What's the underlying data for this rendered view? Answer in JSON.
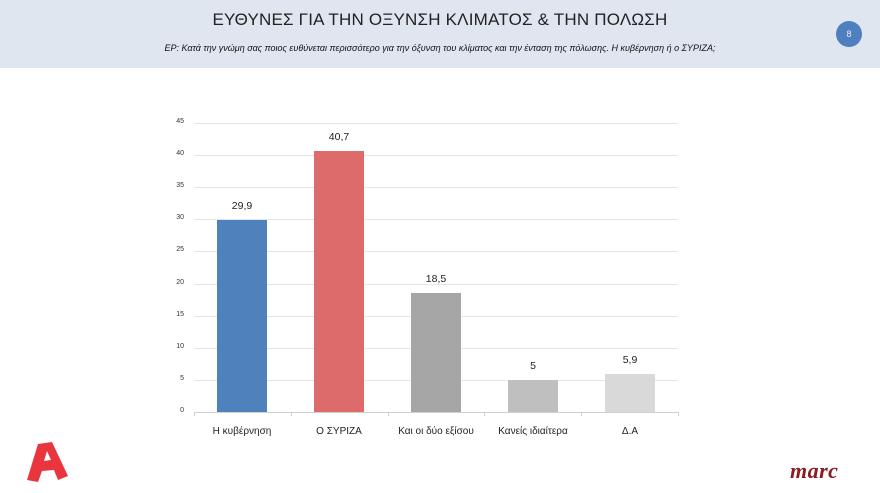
{
  "header": {
    "title": "ΕΥΘΥΝΕΣ ΓΙΑ ΤΗΝ ΟΞΥΝΣΗ ΚΛΙΜΑΤΟΣ & ΤΗΝ ΠΟΛΩΣΗ",
    "subtitle": "ΕΡ: Κατά την γνώμη σας ποιος ευθύνεται περισσότερο για  την όξυνση του κλίματος και την ένταση της πόλωσης. Η κυβέρνηση ή ο ΣΥΡΙΖΑ;",
    "page_number": "8"
  },
  "logos": {
    "left": "alpha-logo",
    "right": "marc"
  },
  "colors": {
    "header_bg": "#dfe6f0",
    "badge": "#4f7fbf",
    "alpha_red": "#e8353e",
    "marc_red": "#8a1c22"
  },
  "chart_data": {
    "type": "bar",
    "title": "",
    "xlabel": "",
    "ylabel": "",
    "ylim": [
      0,
      45
    ],
    "yticks": [
      0,
      5,
      10,
      15,
      20,
      25,
      30,
      35,
      40,
      45
    ],
    "grid": true,
    "legend": false,
    "categories": [
      "Η κυβέρνηση",
      "Ο ΣΥΡΙΖΑ",
      "Και οι δύο εξίσου",
      "Κανείς ιδιαίτερα",
      "Δ.Α"
    ],
    "values": [
      29.9,
      40.7,
      18.5,
      5,
      5.9
    ],
    "value_labels": [
      "29,9",
      "40,7",
      "18,5",
      "5",
      "5,9"
    ],
    "bar_colors": [
      "#4f81bd",
      "#dd6b6b",
      "#a6a6a6",
      "#bfbfbf",
      "#d9d9d9"
    ]
  }
}
